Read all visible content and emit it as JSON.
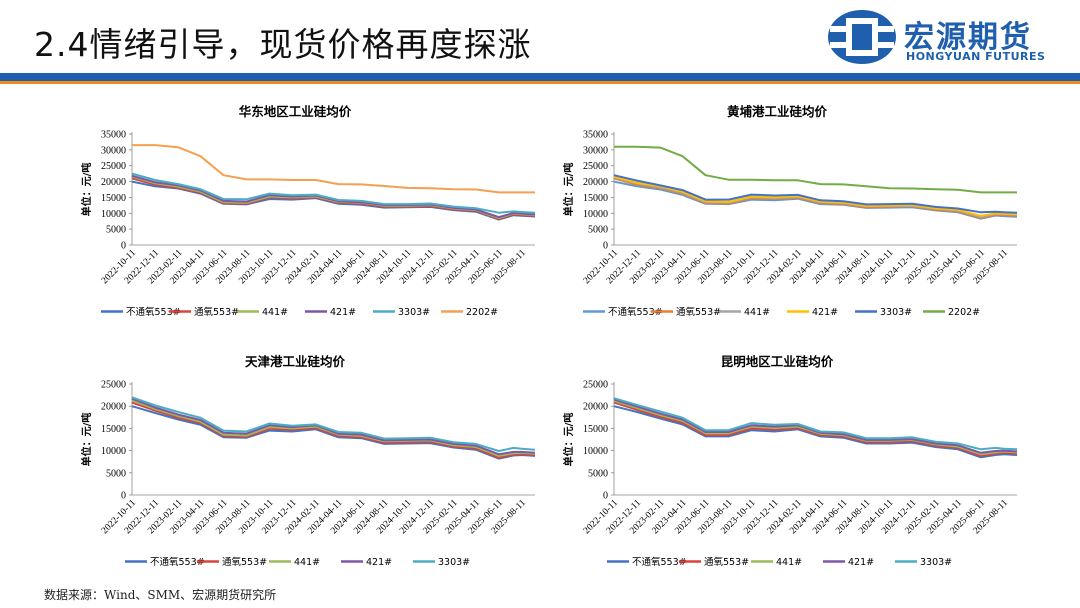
{
  "header": {
    "title": "2.4情绪引导，现货价格再度探涨",
    "logo_cn": "宏源期货",
    "logo_en": "HONGYUAN FUTURES"
  },
  "source": "数据来源：Wind、SMM、宏源期货研究所",
  "colors": {
    "blue_bar": "#1f5fae",
    "orange_bar": "#f08a1a"
  },
  "chart_data": [
    {
      "type": "line",
      "title": "华东地区工业硅均价",
      "ylabel": "单位：元/吨",
      "ylim": [
        0,
        35000
      ],
      "yticks": [
        0,
        5000,
        10000,
        15000,
        20000,
        25000,
        30000,
        35000
      ],
      "xlim": [
        "2022-10-11",
        "2025-09-15"
      ],
      "xticks": [
        "2022-10-11",
        "2022-12-11",
        "2023-02-11",
        "2023-04-11",
        "2023-06-11",
        "2023-08-11",
        "2023-10-11",
        "2023-12-11",
        "2024-02-11",
        "2024-04-11",
        "2024-06-11",
        "2024-08-11",
        "2024-10-11",
        "2024-12-11",
        "2025-02-11",
        "2025-04-11",
        "2025-06-11",
        "2025-08-11"
      ],
      "x": [
        "2022-10-11",
        "2022-12-11",
        "2023-02-11",
        "2023-04-11",
        "2023-06-11",
        "2023-08-11",
        "2023-10-11",
        "2023-12-11",
        "2024-02-11",
        "2024-04-11",
        "2024-06-11",
        "2024-08-11",
        "2024-10-11",
        "2024-12-11",
        "2025-02-11",
        "2025-04-11",
        "2025-06-11",
        "2025-07-20",
        "2025-08-11",
        "2025-09-15"
      ],
      "series": [
        {
          "name": "不通氧553#",
          "color": "#4472c4",
          "values": [
            20000,
            18500,
            17800,
            16200,
            13000,
            12800,
            14500,
            14300,
            14800,
            13000,
            12700,
            11800,
            11900,
            12000,
            11000,
            10500,
            8000,
            9400,
            9200,
            9000
          ]
        },
        {
          "name": "通氧553#",
          "color": "#d9443a",
          "values": [
            21000,
            19000,
            18000,
            16500,
            13200,
            13000,
            15000,
            14700,
            15000,
            13300,
            13000,
            12100,
            12100,
            12300,
            11200,
            10800,
            8200,
            9600,
            9400,
            9200
          ]
        },
        {
          "name": "441#",
          "color": "#9bbb59",
          "values": [
            21500,
            19500,
            18400,
            16800,
            13500,
            13300,
            15300,
            15000,
            15300,
            13600,
            13300,
            12400,
            12400,
            12600,
            11500,
            11000,
            8500,
            9900,
            9700,
            9500
          ]
        },
        {
          "name": "421#",
          "color": "#7e57a6",
          "values": [
            21800,
            19800,
            18800,
            17200,
            13900,
            13700,
            15700,
            15300,
            15600,
            13800,
            13500,
            12600,
            12600,
            12800,
            11700,
            11200,
            8800,
            10100,
            9900,
            9700
          ]
        },
        {
          "name": "3303#",
          "color": "#4bacc6",
          "values": [
            22500,
            20500,
            19200,
            17600,
            14500,
            14400,
            16200,
            15700,
            15900,
            14200,
            13900,
            12900,
            12900,
            13100,
            12100,
            11600,
            10200,
            10600,
            10400,
            10200
          ]
        },
        {
          "name": "2202#",
          "color": "#f4a050",
          "values": [
            31500,
            31500,
            30800,
            28000,
            22000,
            20700,
            20700,
            20500,
            20500,
            19200,
            19100,
            18600,
            18000,
            17900,
            17600,
            17500,
            16600,
            16600,
            16600,
            16600
          ]
        }
      ]
    },
    {
      "type": "line",
      "title": "黄埔港工业硅均价",
      "ylabel": "单位：元/吨",
      "ylim": [
        0,
        35000
      ],
      "yticks": [
        0,
        5000,
        10000,
        15000,
        20000,
        25000,
        30000,
        35000
      ],
      "xlim": [
        "2022-10-11",
        "2025-09-15"
      ],
      "xticks": [
        "2022-10-11",
        "2022-12-11",
        "2023-02-11",
        "2023-04-11",
        "2023-06-11",
        "2023-08-11",
        "2023-10-11",
        "2023-12-11",
        "2024-02-11",
        "2024-04-11",
        "2024-06-11",
        "2024-08-11",
        "2024-10-11",
        "2024-12-11",
        "2025-02-11",
        "2025-04-11",
        "2025-06-11",
        "2025-08-11"
      ],
      "x": [
        "2022-10-11",
        "2022-12-11",
        "2023-02-11",
        "2023-04-11",
        "2023-06-11",
        "2023-08-11",
        "2023-10-11",
        "2023-12-11",
        "2024-02-11",
        "2024-04-11",
        "2024-06-11",
        "2024-08-11",
        "2024-10-11",
        "2024-12-11",
        "2025-02-11",
        "2025-04-11",
        "2025-06-11",
        "2025-07-20",
        "2025-08-11",
        "2025-09-15"
      ],
      "series": [
        {
          "name": "不通氧553#",
          "color": "#5b9bd5",
          "values": [
            20000,
            18500,
            17500,
            15800,
            13000,
            12900,
            14300,
            14100,
            14600,
            12900,
            12700,
            11700,
            11800,
            11900,
            10900,
            10300,
            8300,
            9300,
            9100,
            8900
          ]
        },
        {
          "name": "通氧553#",
          "color": "#ed7d31",
          "values": [
            21000,
            19000,
            17900,
            16200,
            13200,
            13100,
            14700,
            14500,
            14900,
            13200,
            12900,
            11900,
            12000,
            12200,
            11100,
            10600,
            8500,
            9500,
            9400,
            9200
          ]
        },
        {
          "name": "441#",
          "color": "#a5a5a5",
          "values": [
            21400,
            19400,
            18200,
            16500,
            13500,
            13400,
            15000,
            14800,
            15200,
            13500,
            13200,
            12200,
            12300,
            12400,
            11400,
            10900,
            8800,
            9800,
            9700,
            9500
          ]
        },
        {
          "name": "421#",
          "color": "#ffc000",
          "values": [
            21600,
            19600,
            18500,
            16800,
            13800,
            13600,
            15300,
            15100,
            15400,
            13700,
            13400,
            12400,
            12500,
            12600,
            11600,
            11100,
            9200,
            10000,
            9900,
            9700
          ]
        },
        {
          "name": "3303#",
          "color": "#4472c4",
          "values": [
            22000,
            20300,
            18800,
            17300,
            14300,
            14300,
            15900,
            15600,
            15800,
            14100,
            13800,
            12800,
            12900,
            13000,
            12000,
            11500,
            10300,
            10500,
            10300,
            10200
          ]
        },
        {
          "name": "2202#",
          "color": "#70ad47",
          "values": [
            31000,
            31000,
            30700,
            28000,
            22000,
            20600,
            20600,
            20400,
            20400,
            19200,
            19100,
            18500,
            17900,
            17800,
            17600,
            17400,
            16600,
            16600,
            16600,
            16600
          ]
        }
      ]
    },
    {
      "type": "line",
      "title": "天津港工业硅均价",
      "ylabel": "单位：元/吨",
      "ylim": [
        0,
        25000
      ],
      "yticks": [
        0,
        5000,
        10000,
        15000,
        20000,
        25000
      ],
      "xlim": [
        "2022-10-11",
        "2025-09-15"
      ],
      "xticks": [
        "2022-10-11",
        "2022-12-11",
        "2023-02-11",
        "2023-04-11",
        "2023-06-11",
        "2023-08-11",
        "2023-10-11",
        "2023-12-11",
        "2024-02-11",
        "2024-04-11",
        "2024-06-11",
        "2024-08-11",
        "2024-10-11",
        "2024-12-11",
        "2025-02-11",
        "2025-04-11",
        "2025-06-11",
        "2025-08-11"
      ],
      "x": [
        "2022-10-11",
        "2022-12-11",
        "2023-02-11",
        "2023-04-11",
        "2023-06-11",
        "2023-08-11",
        "2023-10-11",
        "2023-12-11",
        "2024-02-11",
        "2024-04-11",
        "2024-06-11",
        "2024-08-11",
        "2024-10-11",
        "2024-12-11",
        "2025-02-11",
        "2025-04-11",
        "2025-06-11",
        "2025-07-20",
        "2025-08-11",
        "2025-09-15"
      ],
      "series": [
        {
          "name": "不通氧553#",
          "color": "#4472c4",
          "values": [
            20000,
            18500,
            17000,
            15800,
            13000,
            12900,
            14500,
            14300,
            14800,
            13000,
            12800,
            11500,
            11600,
            11700,
            10700,
            10200,
            8200,
            8900,
            9000,
            8800
          ]
        },
        {
          "name": "通氧553#",
          "color": "#d9443a",
          "values": [
            20800,
            19000,
            17400,
            16200,
            13300,
            13100,
            14900,
            14700,
            15100,
            13300,
            13000,
            11800,
            11900,
            12000,
            10900,
            10500,
            8400,
            9100,
            9200,
            9000
          ]
        },
        {
          "name": "441#",
          "color": "#9bbb59",
          "values": [
            21300,
            19400,
            17800,
            16500,
            13600,
            13400,
            15300,
            15000,
            15400,
            13600,
            13300,
            12100,
            12200,
            12300,
            11200,
            10800,
            8800,
            9400,
            9500,
            9300
          ]
        },
        {
          "name": "421#",
          "color": "#7e57a6",
          "values": [
            21700,
            19700,
            18100,
            16900,
            14000,
            13800,
            15700,
            15300,
            15700,
            13800,
            13600,
            12300,
            12400,
            12500,
            11500,
            11100,
            9200,
            9700,
            9700,
            9500
          ]
        },
        {
          "name": "3303#",
          "color": "#4bacc6",
          "values": [
            22000,
            20200,
            18700,
            17400,
            14500,
            14300,
            16100,
            15600,
            15900,
            14200,
            14000,
            12700,
            12800,
            12900,
            11900,
            11500,
            9900,
            10600,
            10400,
            10200
          ]
        }
      ]
    },
    {
      "type": "line",
      "title": "昆明地区工业硅均价",
      "ylabel": "单位：元/吨",
      "ylim": [
        0,
        25000
      ],
      "yticks": [
        0,
        5000,
        10000,
        15000,
        20000,
        25000
      ],
      "xlim": [
        "2022-10-11",
        "2025-09-15"
      ],
      "xticks": [
        "2022-10-11",
        "2022-12-11",
        "2023-02-11",
        "2023-04-11",
        "2023-06-11",
        "2023-08-11",
        "2023-10-11",
        "2023-12-11",
        "2024-02-11",
        "2024-04-11",
        "2024-06-11",
        "2024-08-11",
        "2024-10-11",
        "2024-12-11",
        "2025-02-11",
        "2025-04-11",
        "2025-06-11",
        "2025-08-11"
      ],
      "x": [
        "2022-10-11",
        "2022-12-11",
        "2023-02-11",
        "2023-04-11",
        "2023-06-11",
        "2023-08-11",
        "2023-10-11",
        "2023-12-11",
        "2024-02-11",
        "2024-04-11",
        "2024-06-11",
        "2024-08-11",
        "2024-10-11",
        "2024-12-11",
        "2025-02-11",
        "2025-04-11",
        "2025-06-11",
        "2025-07-20",
        "2025-08-11",
        "2025-09-15"
      ],
      "series": [
        {
          "name": "不通氧553#",
          "color": "#4472c4",
          "values": [
            20000,
            18700,
            17200,
            15900,
            13200,
            13200,
            14600,
            14300,
            14800,
            13200,
            12900,
            11600,
            11600,
            11800,
            10800,
            10300,
            8500,
            9000,
            9200,
            9000
          ]
        },
        {
          "name": "通氧553#",
          "color": "#d9443a",
          "values": [
            20800,
            19200,
            17600,
            16300,
            13500,
            13500,
            15000,
            14700,
            15100,
            13500,
            13200,
            11900,
            11900,
            12100,
            11100,
            10600,
            8800,
            9300,
            9500,
            9300
          ]
        },
        {
          "name": "441#",
          "color": "#9bbb59",
          "values": [
            21200,
            19600,
            18000,
            16700,
            13900,
            13900,
            15400,
            15100,
            15400,
            13800,
            13500,
            12200,
            12200,
            12400,
            11400,
            10900,
            9200,
            9600,
            9800,
            9600
          ]
        },
        {
          "name": "421#",
          "color": "#7e57a6",
          "values": [
            21500,
            19900,
            18300,
            17000,
            14200,
            14200,
            15700,
            15400,
            15700,
            14000,
            13700,
            12400,
            12400,
            12600,
            11600,
            11200,
            9500,
            9900,
            10000,
            9800
          ]
        },
        {
          "name": "3303#",
          "color": "#4bacc6",
          "values": [
            21800,
            20300,
            18800,
            17400,
            14600,
            14600,
            16200,
            15800,
            16000,
            14300,
            14100,
            12800,
            12800,
            13000,
            12000,
            11600,
            10300,
            10600,
            10400,
            10300
          ]
        }
      ]
    }
  ]
}
